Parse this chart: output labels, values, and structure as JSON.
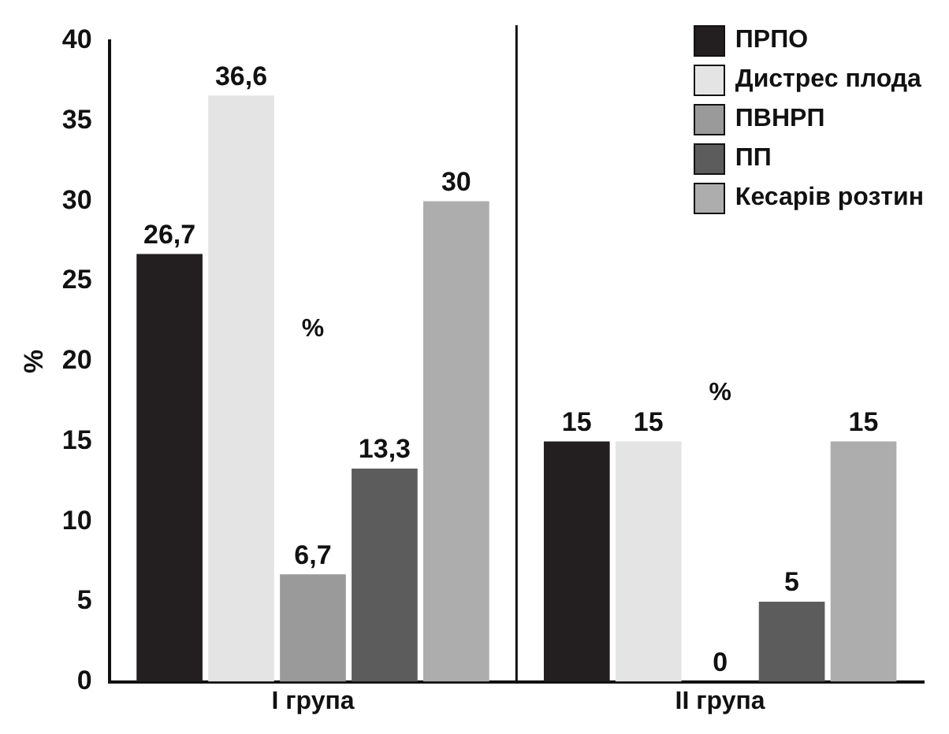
{
  "chart_data": {
    "type": "bar",
    "ylabel": "%",
    "categories": [
      "I група",
      "II група"
    ],
    "series": [
      {
        "name": "ПРПО",
        "color": "#231f20",
        "values": [
          26.7,
          15
        ],
        "value_labels": [
          "26,7",
          "15"
        ]
      },
      {
        "name": "Дистрес плода",
        "color": "#e4e4e4",
        "values": [
          36.6,
          15
        ],
        "value_labels": [
          "36,6",
          "15"
        ]
      },
      {
        "name": "ПВНРП",
        "color": "#9a9a9a",
        "values": [
          6.7,
          0
        ],
        "value_labels": [
          "6,7",
          "0"
        ]
      },
      {
        "name": "ПП",
        "color": "#5c5c5c",
        "values": [
          13.3,
          5
        ],
        "value_labels": [
          "13,3",
          "5"
        ]
      },
      {
        "name": "Кесарів розтин",
        "color": "#adadad",
        "values": [
          30,
          15
        ],
        "value_labels": [
          "30",
          "15"
        ]
      }
    ],
    "ylim": [
      0,
      40
    ],
    "yticks": [
      0,
      5,
      10,
      15,
      20,
      25,
      30,
      35,
      40
    ],
    "grid": false,
    "legend": "top right",
    "annotations": [
      "%",
      "%"
    ]
  }
}
